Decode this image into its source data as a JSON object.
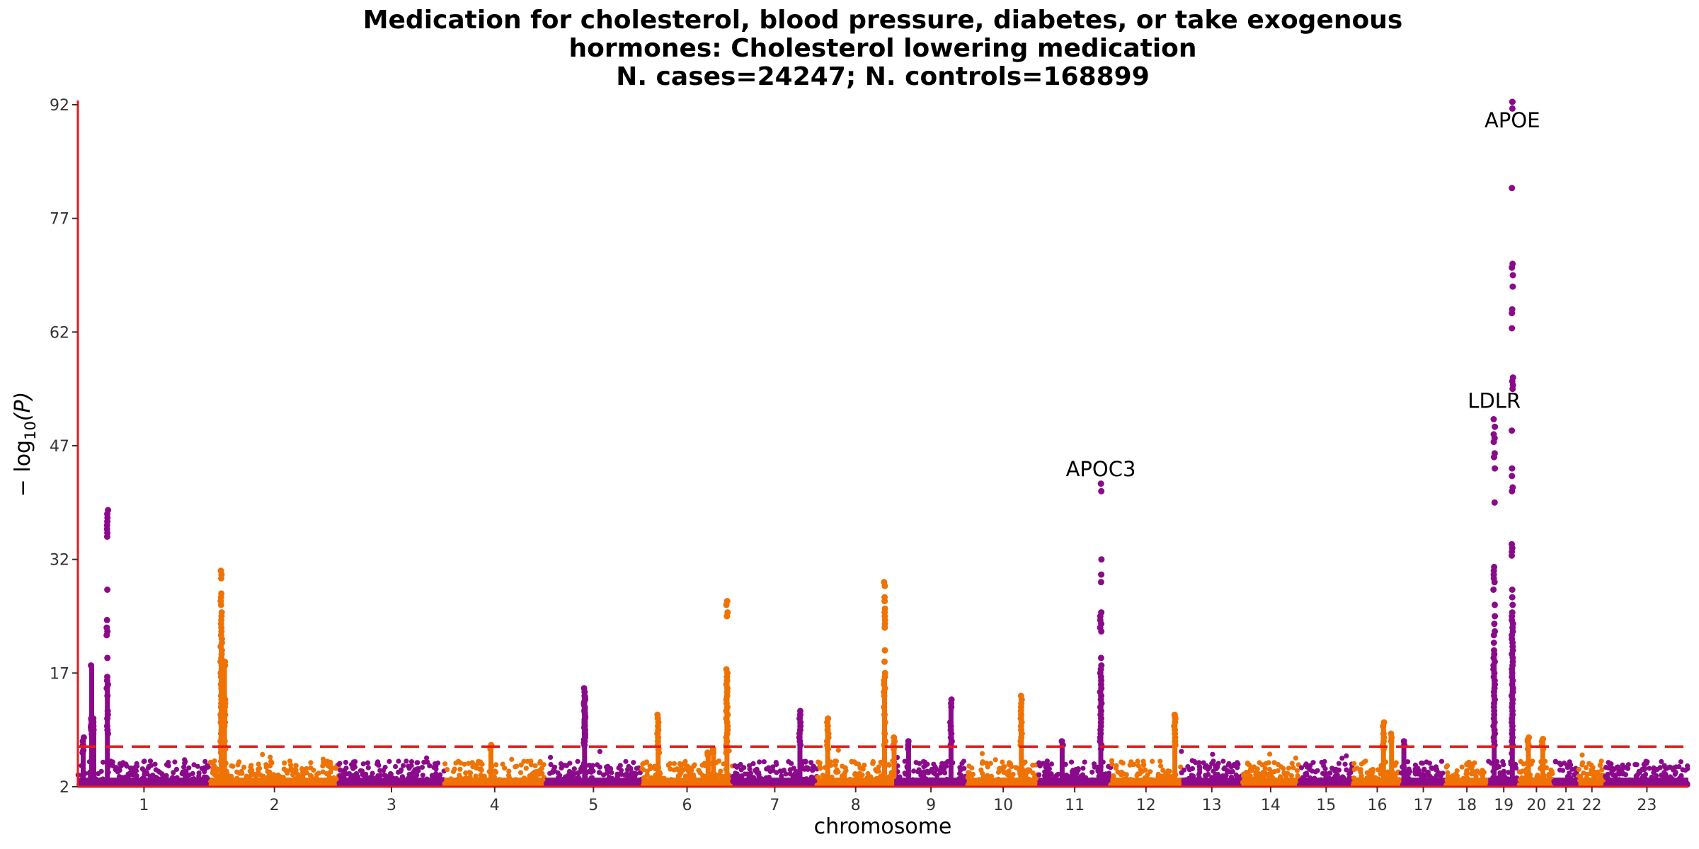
{
  "chart_data": {
    "type": "scatter",
    "subtype": "manhattan",
    "title_lines": [
      "Medication for cholesterol, blood pressure, diabetes, or take exogenous",
      "hormones: Cholesterol lowering medication",
      "N. cases=24247; N. controls=168899"
    ],
    "xlabel": "chromosome",
    "ylabel_parts": {
      "main": "− log",
      "sub": "10",
      "tail": "(P)"
    },
    "ylim": [
      2,
      92
    ],
    "yticks": [
      2,
      17,
      32,
      47,
      62,
      77,
      92
    ],
    "significance_threshold": 7.3,
    "threshold_color": "#e8191a",
    "axis_color": "#e8191a",
    "series_colors": [
      "#8b0a8b",
      "#ef7204"
    ],
    "chromosomes": [
      {
        "label": "1",
        "start": 0.0,
        "end": 248.9
      },
      {
        "label": "2",
        "start": 248.9,
        "end": 491.1
      },
      {
        "label": "3",
        "start": 491.1,
        "end": 689.4
      },
      {
        "label": "4",
        "start": 689.4,
        "end": 879.6
      },
      {
        "label": "5",
        "start": 879.6,
        "end": 1061.1
      },
      {
        "label": "6",
        "start": 1061.1,
        "end": 1231.9
      },
      {
        "label": "7",
        "start": 1231.9,
        "end": 1391.2
      },
      {
        "label": "8",
        "start": 1391.2,
        "end": 1536.3
      },
      {
        "label": "9",
        "start": 1536.3,
        "end": 1674.7
      },
      {
        "label": "10",
        "start": 1674.7,
        "end": 1808.5
      },
      {
        "label": "11",
        "start": 1808.5,
        "end": 1943.6
      },
      {
        "label": "12",
        "start": 1943.6,
        "end": 2076.9
      },
      {
        "label": "13",
        "start": 2076.9,
        "end": 2191.3
      },
      {
        "label": "14",
        "start": 2191.3,
        "end": 2298.3
      },
      {
        "label": "15",
        "start": 2298.3,
        "end": 2400.3
      },
      {
        "label": "16",
        "start": 2400.3,
        "end": 2490.6
      },
      {
        "label": "17",
        "start": 2490.6,
        "end": 2573.9
      },
      {
        "label": "18",
        "start": 2573.9,
        "end": 2654.3
      },
      {
        "label": "19",
        "start": 2654.3,
        "end": 2712.9
      },
      {
        "label": "20",
        "start": 2712.9,
        "end": 2777.3
      },
      {
        "label": "21",
        "start": 2777.3,
        "end": 2824.0
      },
      {
        "label": "22",
        "start": 2824.0,
        "end": 2874.8
      },
      {
        "label": "23",
        "start": 2874.8,
        "end": 3031.0
      }
    ],
    "peaks": [
      {
        "chrom": "1",
        "pos": 55.5,
        "values": [
          38.5,
          38,
          37.5,
          37,
          36.5,
          36,
          35.5,
          35,
          28,
          24,
          23,
          22.5,
          22,
          19,
          16.5,
          16,
          15.5,
          15,
          14,
          12,
          11.5,
          11,
          10,
          9.5,
          9
        ]
      },
      {
        "chrom": "1",
        "pos": 26,
        "values": [
          18,
          11,
          10.8,
          10.5,
          10.2,
          10,
          9.8,
          9.5,
          9
        ]
      },
      {
        "chrom": "1",
        "pos": 30,
        "values": [
          11,
          10.5,
          10,
          9.5,
          9
        ]
      },
      {
        "chrom": "1",
        "pos": 10,
        "values": [
          8.5,
          8,
          7.5,
          6.8,
          6.5
        ]
      },
      {
        "chrom": "2",
        "pos": 21,
        "values": [
          30.5,
          30,
          29.5,
          27.5,
          27,
          26.5,
          26,
          25,
          24.5,
          24,
          23.5,
          23,
          22.5,
          22,
          21.5,
          21,
          20.5,
          20,
          19.5,
          19,
          18.5,
          18,
          17.5,
          17,
          16.5,
          16,
          15.5,
          15,
          14.5,
          14,
          13.5,
          13,
          12.5,
          12,
          11.5,
          11,
          10.5,
          10,
          9.5,
          9,
          8.5,
          8,
          7.5,
          7,
          6.5
        ]
      },
      {
        "chrom": "2",
        "pos": 27,
        "values": [
          18.5,
          18,
          14,
          13.5,
          13,
          12.5,
          12,
          11.5,
          11,
          10.5,
          10,
          9.5,
          9,
          8.5,
          8,
          7.5,
          7
        ]
      },
      {
        "chrom": "4",
        "pos": 88,
        "values": [
          7.5,
          7
        ]
      },
      {
        "chrom": "5",
        "pos": 74,
        "values": [
          15,
          14.5,
          14,
          13.8,
          13.5,
          13.2,
          13,
          12.8,
          12.5,
          12.2,
          12,
          11.8,
          11.5,
          11.2,
          11,
          10.8,
          10.5,
          10.2,
          10,
          9.8,
          9.5,
          9.2,
          9,
          8.8,
          8.5,
          8.2,
          8,
          7.8,
          7.5
        ]
      },
      {
        "chrom": "6",
        "pos": 31,
        "values": [
          11.5,
          11,
          10.5,
          10,
          9.5,
          9,
          8.5,
          8,
          7.5,
          7,
          6.5
        ]
      },
      {
        "chrom": "6",
        "pos": 160.5,
        "values": [
          26.5,
          26,
          25,
          24.5,
          17.5,
          17,
          16.5,
          16,
          15.5,
          15,
          14.5,
          14,
          13.5,
          13,
          12.5,
          12,
          11.5,
          11,
          10.5,
          10,
          9.5,
          9,
          8.5,
          8,
          7.5,
          7,
          6.5
        ]
      },
      {
        "chrom": "6",
        "pos": 135,
        "values": [
          7,
          6.8,
          6.5
        ]
      },
      {
        "chrom": "6",
        "pos": 125,
        "values": [
          6.5,
          6.2
        ]
      },
      {
        "chrom": "7",
        "pos": 127,
        "values": [
          12,
          11.5,
          11,
          10.5,
          10,
          9.5,
          9,
          8.5,
          8,
          7.5
        ]
      },
      {
        "chrom": "8",
        "pos": 20,
        "values": [
          11,
          10.5,
          10,
          9.5,
          9,
          8.5,
          8,
          7.5,
          7
        ]
      },
      {
        "chrom": "8",
        "pos": 127,
        "values": [
          29,
          28.5,
          27,
          26.5,
          25.5,
          25,
          24.5,
          24,
          23.5,
          23,
          20,
          18.5,
          17,
          16.5,
          16,
          15.5,
          15,
          14.5,
          14,
          12.5,
          11.5,
          10.5,
          9,
          8,
          7.5
        ]
      },
      {
        "chrom": "8",
        "pos": 145,
        "values": [
          8.5,
          8,
          7.5,
          7
        ]
      },
      {
        "chrom": "9",
        "pos": 27,
        "values": [
          8,
          7.5,
          7
        ]
      },
      {
        "chrom": "9",
        "pos": 107,
        "values": [
          13.5,
          13,
          12.5,
          10.5,
          10,
          9.5,
          9,
          8.5,
          8,
          7.5
        ]
      },
      {
        "chrom": "10",
        "pos": 101,
        "values": [
          14,
          13.5,
          13,
          12.5,
          12,
          11.5,
          11,
          10.5,
          10,
          9.5,
          9,
          8.5,
          8,
          7.5
        ]
      },
      {
        "chrom": "11",
        "pos": 44,
        "values": [
          8,
          7.5
        ]
      },
      {
        "chrom": "11",
        "pos": 116.7,
        "values": [
          42,
          41,
          32,
          30,
          29,
          25,
          24.5,
          24,
          23.5,
          23,
          22.5,
          19,
          18,
          17.5,
          17,
          16.5,
          16,
          15.5,
          15,
          14.5,
          14,
          13.5,
          13,
          12.5,
          12,
          11.5,
          11,
          10.5,
          10,
          9.5,
          9,
          8.5,
          8,
          7.5,
          7
        ]
      },
      {
        "chrom": "12",
        "pos": 121,
        "values": [
          11.5,
          11.2,
          11,
          10.5,
          10,
          9.5,
          9,
          8.5,
          8,
          7.5
        ]
      },
      {
        "chrom": "16",
        "pos": 56.9,
        "values": [
          10.5,
          10,
          9,
          8.5,
          8,
          7.5,
          7
        ]
      },
      {
        "chrom": "16",
        "pos": 72,
        "values": [
          9,
          8.5,
          8
        ]
      },
      {
        "chrom": "17",
        "pos": 5,
        "values": [
          8,
          7.5
        ]
      },
      {
        "chrom": "19",
        "pos": 11.2,
        "values": [
          50.5,
          49.5,
          48.5,
          48,
          47.5,
          46,
          45.5,
          44,
          39.5,
          31,
          30.5,
          30,
          29.5,
          29,
          28,
          26,
          24.5,
          23.5,
          22.5,
          22,
          21,
          20,
          19.5,
          19,
          18.5,
          18,
          17.5,
          17,
          16.5,
          16,
          15.5,
          15,
          14.5,
          14,
          13.5,
          13,
          12.5,
          12,
          11.5,
          11,
          10.5,
          10,
          9.5,
          9,
          8.5,
          8,
          7.5
        ]
      },
      {
        "chrom": "19",
        "pos": 45.4,
        "values": [
          93,
          92.5,
          91.5,
          81,
          71,
          70.5,
          69.5,
          68,
          65,
          64.5,
          62.5,
          56,
          55.5,
          55,
          54.5,
          49,
          44,
          43,
          41.5,
          41,
          34,
          33.5,
          33,
          32.5,
          28,
          27,
          26,
          25,
          24.5,
          24,
          23.5,
          23,
          22.5,
          22,
          21.5,
          21,
          20.5,
          20,
          19.5,
          19,
          18.5,
          18,
          17.5,
          17,
          16.5,
          16,
          15.5,
          15,
          14.5,
          14,
          13.5,
          13,
          12.5,
          12,
          11.5,
          11,
          10.5,
          10,
          9.5,
          9,
          8.5,
          8,
          7.5
        ]
      },
      {
        "chrom": "20",
        "pos": 17,
        "values": [
          8.5,
          8.2,
          8,
          7.5,
          7
        ]
      },
      {
        "chrom": "20",
        "pos": 44,
        "values": [
          8.3,
          8,
          7.5,
          7
        ]
      }
    ],
    "annotations": [
      {
        "text": "APOC3",
        "chrom": "11",
        "pos": 116.7,
        "y": 43
      },
      {
        "text": "LDLR",
        "chrom": "19",
        "pos": 11.2,
        "y": 52
      },
      {
        "text": "APOE",
        "chrom": "19",
        "pos": 45.4,
        "y": 89
      }
    ]
  }
}
